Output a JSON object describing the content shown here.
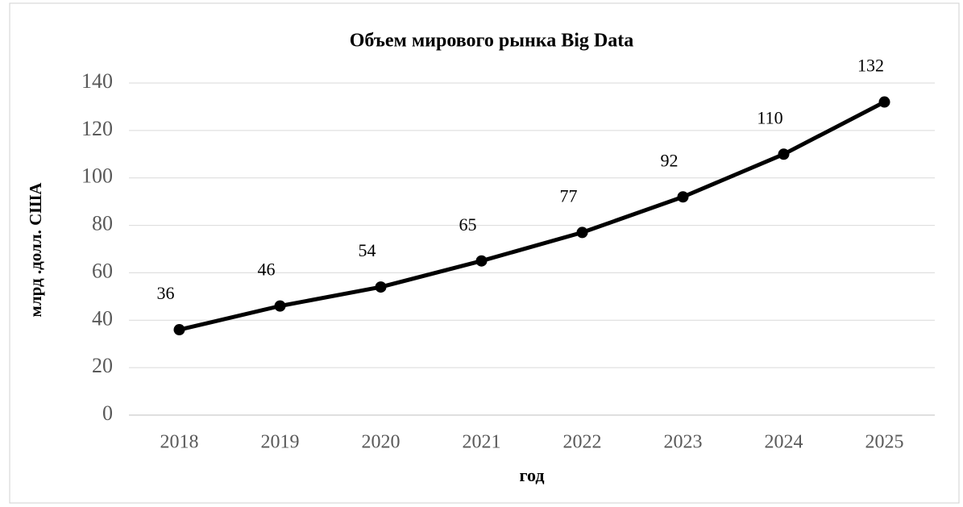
{
  "chart_data": {
    "type": "line",
    "title": "Объем мирового рынка Big Data",
    "x_label": "год",
    "y_label": "млрд .долл. США",
    "categories": [
      "2018",
      "2019",
      "2020",
      "2021",
      "2022",
      "2023",
      "2024",
      "2025"
    ],
    "series": [
      {
        "name": "Объем",
        "color": "#000000",
        "values": [
          36,
          46,
          54,
          65,
          77,
          92,
          110,
          132
        ]
      }
    ],
    "ylim": [
      0,
      140
    ],
    "yticks": [
      0,
      20,
      40,
      60,
      80,
      100,
      120,
      140
    ],
    "grid": true
  }
}
